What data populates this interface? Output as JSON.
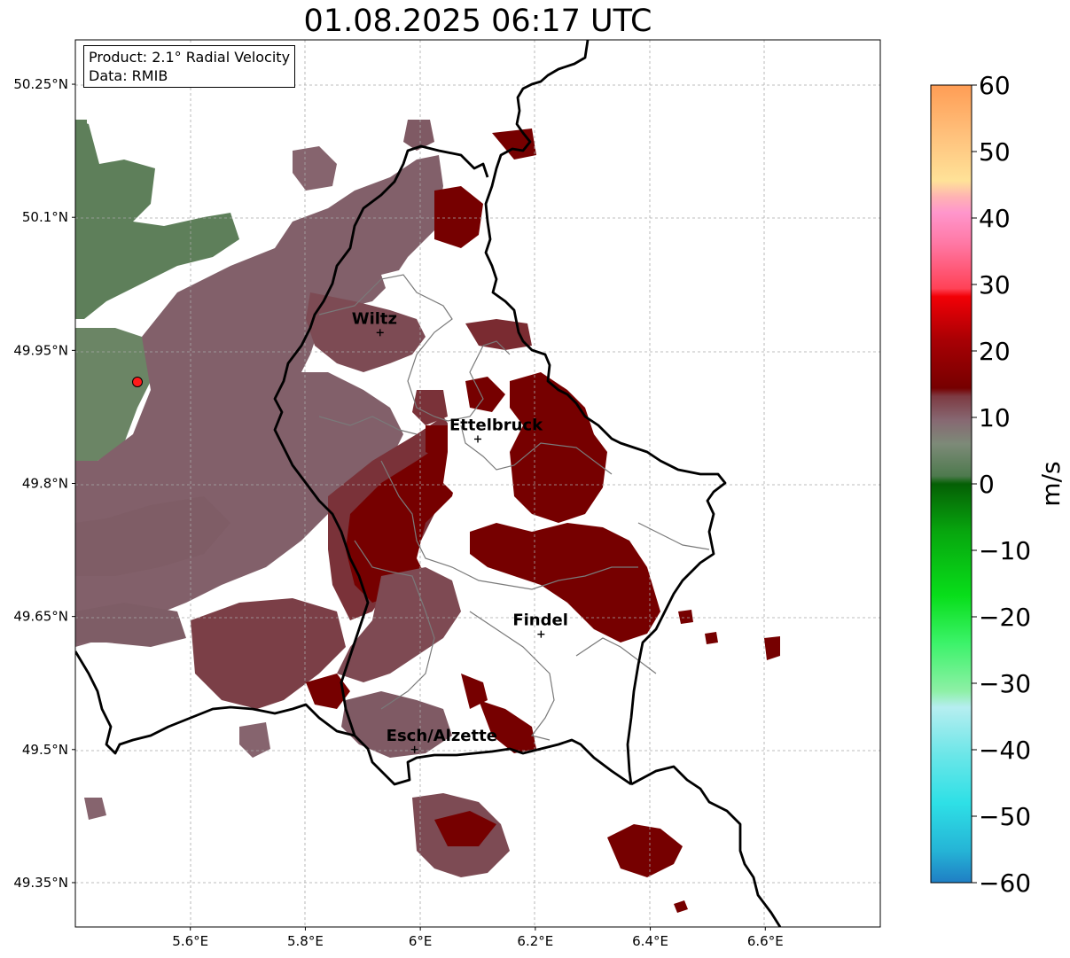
{
  "title": "01.08.2025 06:17 UTC",
  "info": {
    "product": "Product: 2.1° Radial Velocity",
    "source": "Data: RMIB"
  },
  "axes": {
    "lat_ticks": [
      "50.25°N",
      "50.1°N",
      "49.95°N",
      "49.8°N",
      "49.65°N",
      "49.5°N",
      "49.35°N"
    ],
    "lon_ticks": [
      "5.6°E",
      "5.8°E",
      "6°E",
      "6.2°E",
      "6.4°E",
      "6.6°E"
    ],
    "lon_range": [
      5.4,
      6.8
    ],
    "lat_range": [
      49.3,
      50.3
    ],
    "grid": true
  },
  "colorbar": {
    "unit": "m/s",
    "range": [
      -60,
      60
    ],
    "ticks": [
      "60",
      "50",
      "40",
      "30",
      "20",
      "10",
      "0",
      "−10",
      "−20",
      "−30",
      "−40",
      "−50",
      "−60"
    ]
  },
  "cities": [
    {
      "name": "Wiltz",
      "lon": 5.93,
      "lat": 49.97
    },
    {
      "name": "Ettelbruck",
      "lon": 6.1,
      "lat": 49.85
    },
    {
      "name": "Findel",
      "lon": 6.21,
      "lat": 49.63
    },
    {
      "name": "Esch/Alzette",
      "lon": 5.99,
      "lat": 49.5
    }
  ],
  "radar_site": {
    "lon": 5.505,
    "lat": 49.915
  }
}
